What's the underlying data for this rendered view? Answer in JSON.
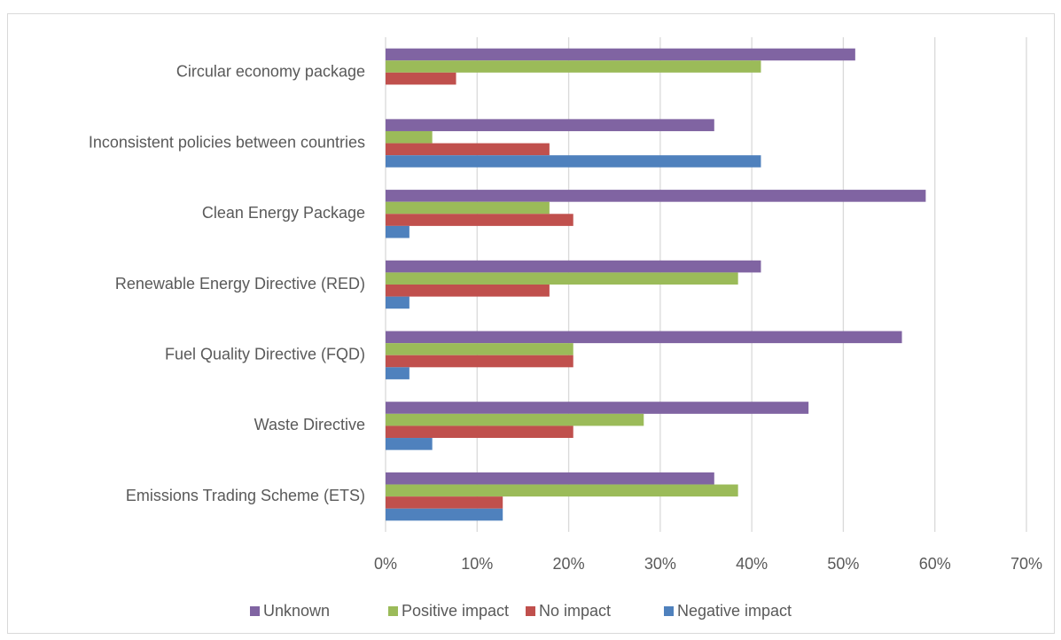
{
  "chart_data": {
    "type": "bar",
    "orientation": "horizontal",
    "categories": [
      "Circular economy package",
      "Inconsistent policies between countries",
      "Clean Energy Package",
      "Renewable Energy Directive (RED)",
      "Fuel Quality Directive (FQD)",
      "Waste Directive",
      "Emissions Trading Scheme (ETS)"
    ],
    "series": [
      {
        "name": "Unknown",
        "color": "#8064a2",
        "values": [
          51.3,
          35.9,
          59.0,
          41.0,
          56.4,
          46.2,
          35.9
        ]
      },
      {
        "name": "Positive impact",
        "color": "#9bbb59",
        "values": [
          41.0,
          5.1,
          17.9,
          38.5,
          20.5,
          28.2,
          38.5
        ]
      },
      {
        "name": "No impact",
        "color": "#c0504d",
        "values": [
          7.7,
          17.9,
          20.5,
          17.9,
          20.5,
          20.5,
          12.8
        ]
      },
      {
        "name": "Negative impact",
        "color": "#4f81bd",
        "values": [
          0,
          41.0,
          2.6,
          2.6,
          2.6,
          5.1,
          12.8
        ]
      }
    ],
    "xlim": [
      0,
      70
    ],
    "xticks": [
      {
        "value": 0,
        "label": "0%"
      },
      {
        "value": 10,
        "label": "10%"
      },
      {
        "value": 20,
        "label": "20%"
      },
      {
        "value": 30,
        "label": "30%"
      },
      {
        "value": 40,
        "label": "40%"
      },
      {
        "value": 50,
        "label": "50%"
      },
      {
        "value": 60,
        "label": "60%"
      },
      {
        "value": 70,
        "label": "70%"
      }
    ],
    "grid": true,
    "legend": "bottom"
  }
}
